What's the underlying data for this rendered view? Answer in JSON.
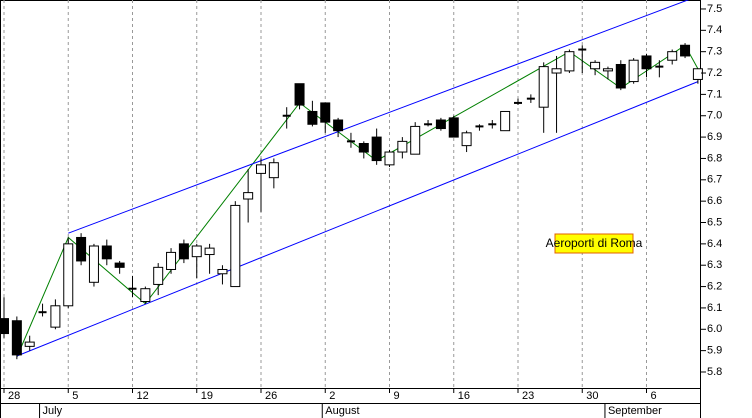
{
  "chart_data": {
    "type": "candlestick",
    "annotation": "Aeroporti di Roma",
    "categories": [
      "28",
      null,
      null,
      null,
      null,
      "5",
      null,
      null,
      null,
      null,
      "12",
      null,
      null,
      null,
      null,
      "19",
      null,
      null,
      null,
      null,
      "26",
      null,
      null,
      null,
      null,
      "2",
      null,
      null,
      null,
      null,
      "9",
      null,
      null,
      null,
      null,
      "16",
      null,
      null,
      null,
      null,
      "23",
      null,
      null,
      null,
      null,
      "30",
      null,
      null,
      null,
      null,
      "6",
      null,
      null,
      null,
      null
    ],
    "month_categories": [
      null,
      null,
      null,
      "July",
      null,
      null,
      null,
      null,
      null,
      null,
      null,
      null,
      null,
      null,
      null,
      null,
      null,
      null,
      null,
      null,
      null,
      null,
      null,
      null,
      null,
      "August",
      null,
      null,
      null,
      null,
      null,
      null,
      null,
      null,
      null,
      null,
      null,
      null,
      null,
      null,
      null,
      null,
      null,
      null,
      null,
      null,
      null,
      "September",
      null,
      null,
      null,
      null,
      null,
      null,
      null
    ],
    "open": [
      6.05,
      6.04,
      5.92,
      6.08,
      6.01,
      6.11,
      6.43,
      6.22,
      6.39,
      6.31,
      6.19,
      6.13,
      6.21,
      6.28,
      6.4,
      6.34,
      6.35,
      6.26,
      6.2,
      6.61,
      6.73,
      6.71,
      7.0,
      7.15,
      7.02,
      7.06,
      6.98,
      6.88,
      6.87,
      6.9,
      6.77,
      6.83,
      6.82,
      6.96,
      6.98,
      6.99,
      6.86,
      6.95,
      6.96,
      6.93,
      7.06,
      7.08,
      7.04,
      7.2,
      7.21,
      7.31,
      7.22,
      7.21,
      7.24,
      7.16,
      7.28,
      7.23,
      7.26,
      7.33,
      7.17
    ],
    "high": [
      6.15,
      6.06,
      5.97,
      6.12,
      6.14,
      6.43,
      6.45,
      6.4,
      6.42,
      6.32,
      6.25,
      6.2,
      6.31,
      6.38,
      6.42,
      6.4,
      6.4,
      6.3,
      6.6,
      6.75,
      6.8,
      6.8,
      7.04,
      7.15,
      7.07,
      7.06,
      6.99,
      6.92,
      6.88,
      6.94,
      6.84,
      6.9,
      6.97,
      6.98,
      6.99,
      7.0,
      6.93,
      6.96,
      6.98,
      7.02,
      7.08,
      7.1,
      7.25,
      7.28,
      7.31,
      7.33,
      7.26,
      7.23,
      7.26,
      7.27,
      7.29,
      7.26,
      7.31,
      7.34,
      7.22
    ],
    "low": [
      5.96,
      5.86,
      5.9,
      6.06,
      6.0,
      6.1,
      6.3,
      6.2,
      6.3,
      6.26,
      6.15,
      6.12,
      6.16,
      6.26,
      6.31,
      6.24,
      6.26,
      6.21,
      6.2,
      6.5,
      6.55,
      6.66,
      6.94,
      7.03,
      6.95,
      6.92,
      6.9,
      6.85,
      6.8,
      6.77,
      6.76,
      6.8,
      6.82,
      6.95,
      6.93,
      6.9,
      6.83,
      6.93,
      6.94,
      6.93,
      7.05,
      7.06,
      6.92,
      6.92,
      7.2,
      7.2,
      7.19,
      7.17,
      7.12,
      7.15,
      7.18,
      7.18,
      7.24,
      7.27,
      7.15
    ],
    "close": [
      5.98,
      5.88,
      5.94,
      6.08,
      6.11,
      6.4,
      6.32,
      6.39,
      6.33,
      6.29,
      6.19,
      6.19,
      6.29,
      6.36,
      6.33,
      6.39,
      6.38,
      6.28,
      6.58,
      6.64,
      6.77,
      6.78,
      7.0,
      7.05,
      6.96,
      6.97,
      6.93,
      6.88,
      6.83,
      6.79,
      6.83,
      6.88,
      6.95,
      6.96,
      6.94,
      6.9,
      6.92,
      6.95,
      6.96,
      7.02,
      7.06,
      7.08,
      7.23,
      7.22,
      7.3,
      7.31,
      7.25,
      7.22,
      7.13,
      7.26,
      7.22,
      7.23,
      7.3,
      7.28,
      7.22
    ],
    "lines": [
      {
        "color": "#008000",
        "x": [
          1,
          5,
          11,
          23,
          29,
          44,
          48,
          53,
          54
        ],
        "values": [
          5.87,
          6.43,
          6.12,
          7.06,
          6.79,
          7.3,
          7.13,
          7.33,
          7.22
        ]
      },
      {
        "color": "#0000ff",
        "x": [
          5,
          54
        ],
        "values": [
          6.45,
          7.56
        ]
      },
      {
        "color": "#0000ff",
        "x": [
          1,
          54
        ],
        "values": [
          5.875,
          7.16
        ]
      }
    ],
    "ylim": [
      5.725,
      7.542
    ],
    "yticks": [
      5.8,
      5.9,
      {
        "value": 6,
        "label": "6.0"
      },
      6.1,
      6.2,
      6.3,
      6.4,
      6.5,
      6.6,
      6.7,
      6.8,
      6.9,
      {
        "value": 7,
        "label": "7.0"
      },
      7.1,
      7.2,
      7.3,
      7.4,
      7.5
    ]
  }
}
